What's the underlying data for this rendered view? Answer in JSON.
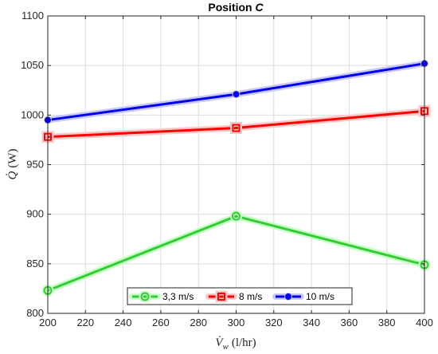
{
  "chart_data": {
    "type": "line",
    "title": "Position C",
    "title_prefix": "Position ",
    "title_italic": "C",
    "xlabel": "V̇w (l/hr)",
    "xlabel_symbol": "V̇",
    "xlabel_sub": "w",
    "xlabel_unit": "(l/hr)",
    "ylabel": "Q̇ (W)",
    "ylabel_symbol": "Q̇",
    "ylabel_unit": "(W)",
    "xlim": [
      200,
      400
    ],
    "ylim": [
      800,
      1100
    ],
    "xticks": [
      200,
      220,
      240,
      260,
      280,
      300,
      320,
      340,
      360,
      380,
      400
    ],
    "yticks": [
      800,
      850,
      900,
      950,
      1000,
      1050,
      1100
    ],
    "grid": true,
    "legend_position": "bottom-center",
    "x": [
      200,
      300,
      400
    ],
    "series": [
      {
        "name": "3,3 m/s",
        "values": [
          823,
          898,
          849
        ],
        "color": "#33cc33",
        "glow": "#c8ffc8",
        "marker": "circle-open"
      },
      {
        "name": "8 m/s",
        "values": [
          978,
          987,
          1004
        ],
        "color": "#ff0000",
        "glow": "#ffc8c8",
        "marker": "square-open"
      },
      {
        "name": "10 m/s",
        "values": [
          995,
          1021,
          1052
        ],
        "color": "#0000ee",
        "glow": "#c8c8ff",
        "marker": "circle-filled"
      }
    ]
  }
}
